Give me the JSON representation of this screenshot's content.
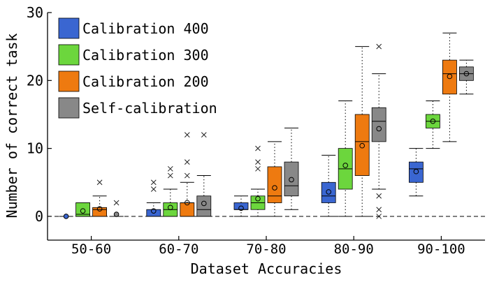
{
  "chart_data": {
    "type": "box",
    "xlabel": "Dataset Accuracies",
    "ylabel": "Number of correct task",
    "ylim": [
      -3.5,
      30
    ],
    "yticks": [
      0,
      10,
      20,
      30
    ],
    "zero_line": "dashed",
    "legend_placement": "top-left",
    "categories": [
      "50-60",
      "60-70",
      "70-80",
      "80-90",
      "90-100"
    ],
    "series": [
      {
        "name": "Calibration 400",
        "color": "#3a66d1",
        "boxes": [
          {
            "min": 0,
            "q1": 0,
            "median": 0,
            "q3": 0,
            "max": 0,
            "mean": 0,
            "outliers": []
          },
          {
            "min": 0,
            "q1": 0,
            "median": 0,
            "q3": 1,
            "max": 2,
            "mean": 0.8,
            "outliers": [
              4,
              5
            ]
          },
          {
            "min": 0,
            "q1": 1,
            "median": 1,
            "q3": 2,
            "max": 3,
            "mean": 1.2,
            "outliers": []
          },
          {
            "min": 0,
            "q1": 2,
            "median": 3,
            "q3": 5,
            "max": 9,
            "mean": 3.6,
            "outliers": []
          },
          {
            "min": 3,
            "q1": 5,
            "median": 7,
            "q3": 8,
            "max": 10,
            "mean": 6.6,
            "outliers": []
          }
        ]
      },
      {
        "name": "Calibration 300",
        "color": "#6cd63d",
        "boxes": [
          {
            "min": 0,
            "q1": 0,
            "median": 0.3,
            "q3": 2,
            "max": 2,
            "mean": 0.8,
            "outliers": []
          },
          {
            "min": 0,
            "q1": 0,
            "median": 1,
            "q3": 2,
            "max": 4,
            "mean": 1.3,
            "outliers": [
              6,
              7
            ]
          },
          {
            "min": 0,
            "q1": 1,
            "median": 2,
            "q3": 3,
            "max": 4,
            "mean": 2.6,
            "outliers": [
              7,
              8,
              10
            ]
          },
          {
            "min": 0,
            "q1": 4,
            "median": 7,
            "q3": 10,
            "max": 17,
            "mean": 7.5,
            "outliers": []
          },
          {
            "min": 10,
            "q1": 13,
            "median": 14,
            "q3": 15,
            "max": 17,
            "mean": 14,
            "outliers": []
          }
        ]
      },
      {
        "name": "Calibration 200",
        "color": "#ee7a10",
        "boxes": [
          {
            "min": 0,
            "q1": 0,
            "median": 1,
            "q3": 1.3,
            "max": 3,
            "mean": 1.1,
            "outliers": [
              5
            ]
          },
          {
            "min": 0,
            "q1": 0,
            "median": 2,
            "q3": 2,
            "max": 5,
            "mean": 2,
            "outliers": [
              6,
              8,
              12
            ]
          },
          {
            "min": 0,
            "q1": 2,
            "median": 3,
            "q3": 7.3,
            "max": 11,
            "mean": 4.2,
            "outliers": []
          },
          {
            "min": 0,
            "q1": 6,
            "median": 11,
            "q3": 15,
            "max": 25,
            "mean": 10.4,
            "outliers": []
          },
          {
            "min": 11,
            "q1": 18,
            "median": 21,
            "q3": 23,
            "max": 27,
            "mean": 20.6,
            "outliers": []
          }
        ]
      },
      {
        "name": "Self-calibration",
        "color": "#888888",
        "boxes": [
          {
            "min": 0,
            "q1": 0,
            "median": 0,
            "q3": 0,
            "max": 0,
            "mean": 0.3,
            "outliers": [
              2
            ]
          },
          {
            "min": 0,
            "q1": 0,
            "median": 1,
            "q3": 3,
            "max": 6,
            "mean": 1.9,
            "outliers": [
              12
            ]
          },
          {
            "min": 1,
            "q1": 3,
            "median": 4.5,
            "q3": 8,
            "max": 13,
            "mean": 5.4,
            "outliers": []
          },
          {
            "min": 4,
            "q1": 11,
            "median": 14,
            "q3": 16,
            "max": 21,
            "mean": 12.9,
            "outliers": [
              0,
              1,
              3,
              25
            ]
          },
          {
            "min": 18,
            "q1": 20,
            "median": 21,
            "q3": 22,
            "max": 23,
            "mean": 21,
            "outliers": []
          }
        ]
      }
    ]
  }
}
